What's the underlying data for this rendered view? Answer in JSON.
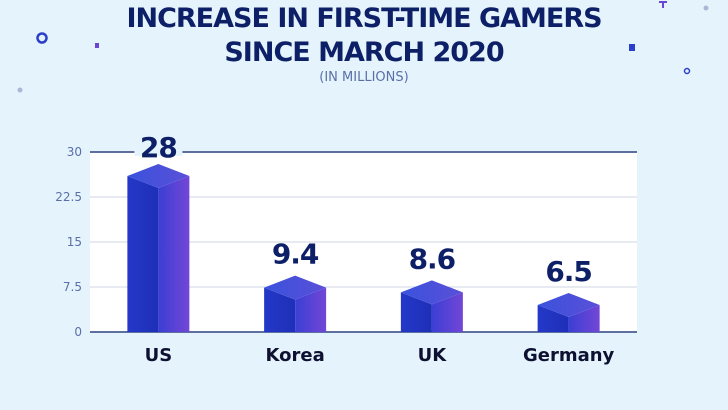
{
  "chart_data": {
    "type": "bar",
    "title": "INCREASE IN FIRST-TIME GAMERS SINCE MARCH 2020",
    "title_lines": [
      "INCREASE IN FIRST-TIME GAMERS",
      "SINCE MARCH 2020"
    ],
    "subtitle": "(IN MILLIONS)",
    "categories": [
      "US",
      "Korea",
      "UK",
      "Germany"
    ],
    "values": [
      28,
      9.4,
      8.6,
      6.5
    ],
    "data_labels": [
      "28",
      "9.4",
      "8.6",
      "6.5"
    ],
    "yticks": [
      "0",
      "7.5",
      "15",
      "22.5",
      "30"
    ],
    "ylim": [
      0,
      30
    ],
    "grid": true,
    "colors": {
      "bar_front": "#2a3fd0",
      "bar_side": "#6a45d6",
      "bar_top": "#4a5ee0",
      "text": "#0d1f66",
      "tick": "#5a6fa8"
    }
  }
}
